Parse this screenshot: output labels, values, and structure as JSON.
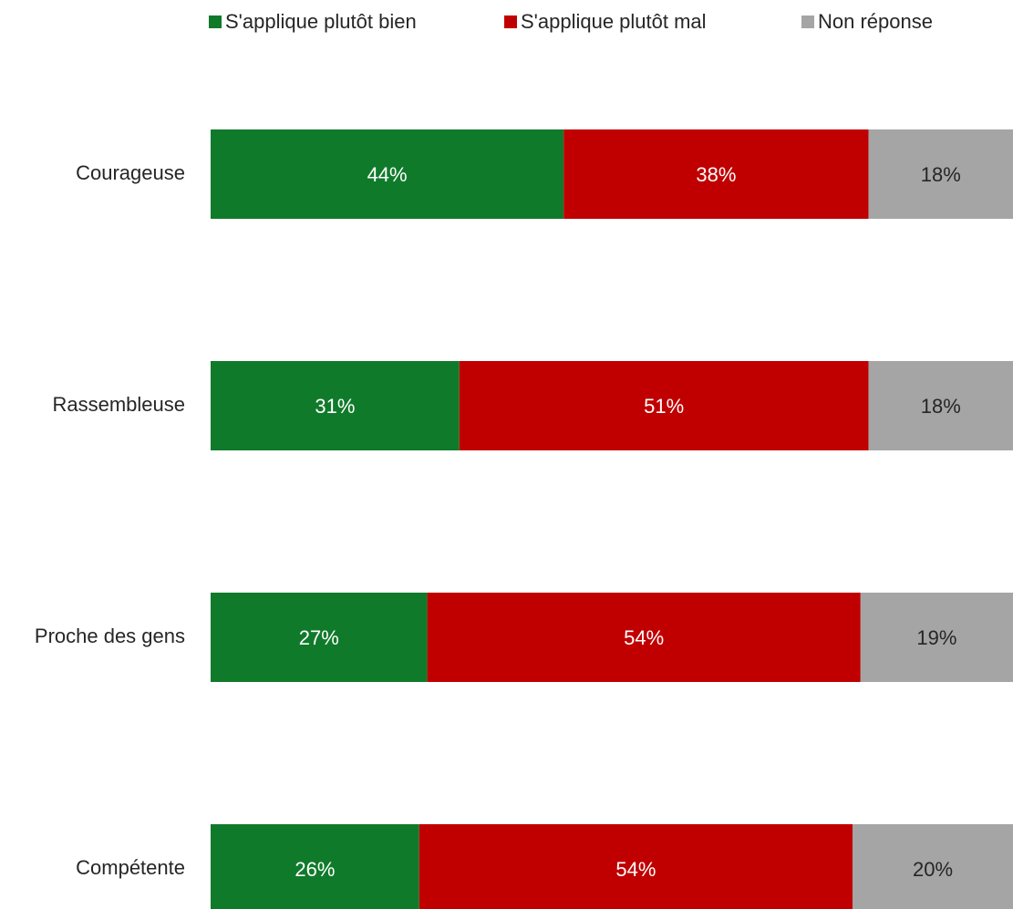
{
  "chart_data": {
    "type": "stacked_bar_horizontal",
    "categories": [
      "Courageuse",
      "Rassembleuse",
      "Proche des gens",
      "Compétente"
    ],
    "series": [
      {
        "name": "S'applique plutôt bien",
        "color": "#107a2b",
        "label_color": "#ffffff",
        "values": [
          44,
          31,
          27,
          26
        ],
        "value_labels": [
          "44%",
          "31%",
          "27%",
          "26%"
        ]
      },
      {
        "name": "S'applique plutôt mal",
        "color": "#c00000",
        "label_color": "#ffffff",
        "values": [
          38,
          51,
          54,
          54
        ],
        "value_labels": [
          "38%",
          "51%",
          "54%",
          "54%"
        ]
      },
      {
        "name": "Non réponse",
        "color": "#a5a5a5",
        "label_color": "#262626",
        "values": [
          18,
          18,
          19,
          20
        ],
        "value_labels": [
          "18%",
          "18%",
          "19%",
          "20%"
        ]
      }
    ],
    "xlim": [
      0,
      100
    ],
    "legend": "top"
  }
}
